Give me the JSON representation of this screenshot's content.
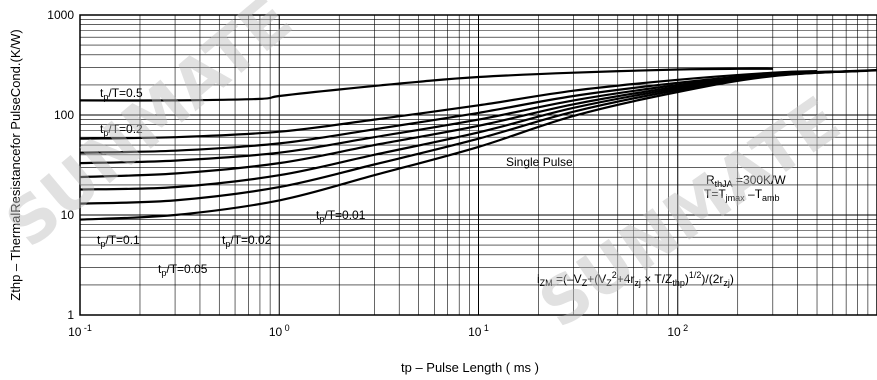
{
  "chart_data": {
    "type": "line",
    "title": "",
    "xlabel": "tp – Pulse Length ( ms )",
    "ylabel": "Zthp – ThermalResistancefor PulseCond.(K/W)",
    "xscale": "log",
    "yscale": "log",
    "xlim": [
      0.1,
      1000
    ],
    "ylim": [
      1,
      1000
    ],
    "grid": true,
    "x_ticks": [
      {
        "base": "10",
        "exp": "-1"
      },
      {
        "base": "10",
        "exp": "0"
      },
      {
        "base": "10",
        "exp": "1"
      },
      {
        "base": "10",
        "exp": "2"
      }
    ],
    "y_ticks": [
      "1",
      "10",
      "100",
      "1000"
    ],
    "series": [
      {
        "name": "tp/T=0.5",
        "x": [
          0.1,
          0.3,
          0.8,
          1,
          2,
          5,
          10,
          30,
          100,
          200,
          300
        ],
        "y": [
          140,
          140,
          145,
          155,
          180,
          215,
          240,
          265,
          285,
          290,
          290
        ]
      },
      {
        "name": "tp/T=0.2",
        "x": [
          0.1,
          0.3,
          1,
          3,
          10,
          30,
          100,
          300,
          500
        ],
        "y": [
          58,
          60,
          68,
          90,
          125,
          175,
          225,
          265,
          275
        ]
      },
      {
        "name": "",
        "x": [
          0.1,
          0.3,
          1,
          3,
          10,
          30,
          100,
          300,
          600
        ],
        "y": [
          42,
          44,
          52,
          72,
          105,
          155,
          210,
          258,
          272
        ]
      },
      {
        "name": "tp/T=0.1",
        "x": [
          0.1,
          0.3,
          1,
          3,
          10,
          30,
          100,
          300,
          700
        ],
        "y": [
          33,
          35,
          42,
          60,
          90,
          140,
          200,
          255,
          273
        ]
      },
      {
        "name": "tp/T=0.05",
        "x": [
          0.1,
          0.3,
          1,
          3,
          10,
          30,
          100,
          300,
          800
        ],
        "y": [
          24,
          26,
          33,
          50,
          78,
          128,
          192,
          252,
          275
        ]
      },
      {
        "name": "tp/T=0.02",
        "x": [
          0.1,
          0.3,
          1,
          3,
          10,
          30,
          100,
          300,
          900
        ],
        "y": [
          18,
          19,
          25,
          40,
          67,
          118,
          185,
          250,
          277
        ]
      },
      {
        "name": "tp/T=0.01",
        "x": [
          0.1,
          0.3,
          1,
          3,
          10,
          30,
          100,
          300,
          1000
        ],
        "y": [
          13,
          14,
          19,
          32,
          58,
          108,
          178,
          248,
          280
        ]
      },
      {
        "name": "Single Pulse",
        "x": [
          0.1,
          0.3,
          1,
          3,
          10,
          30,
          100,
          300,
          1000
        ],
        "y": [
          9,
          10,
          14,
          25,
          48,
          98,
          170,
          245,
          282
        ]
      }
    ],
    "annotations": {
      "tp_05": {
        "main": "t",
        "sub": "p",
        "rest": "/T=0.5"
      },
      "tp_02": {
        "main": "t",
        "sub": "p",
        "rest": "/T=0.2"
      },
      "tp_01": {
        "main": "t",
        "sub": "p",
        "rest": "/T=0.1"
      },
      "tp_005": {
        "main": "t",
        "sub": "p",
        "rest": "/T=0.05"
      },
      "tp_002": {
        "main": "t",
        "sub": "p",
        "rest": "/T=0.02"
      },
      "tp_001": {
        "main": "t",
        "sub": "p",
        "rest": "/T=0.01"
      },
      "single": "Single Pulse",
      "rthja": {
        "main": "R",
        "sub": "thJA",
        "rest": " =300K/W"
      },
      "tdiff": {
        "a": "T=T",
        "sub1": "jmax",
        "b": " –T",
        "sub2": "amb"
      },
      "formula": {
        "p1": "i",
        "s1": "ZM",
        "p2": " =(–V",
        "s2": "Z",
        "p3": "+(V",
        "s3": "Z",
        "sup1": "2",
        "p4": "+4r",
        "s4": "zj",
        "p5": "  ×   T/Z",
        "s5": "thp",
        "p6": ")",
        "sup2": "1/2",
        "p7": ")/(2r",
        "s6": "zj",
        "p8": ")"
      }
    },
    "watermark": "SUNMATE"
  }
}
